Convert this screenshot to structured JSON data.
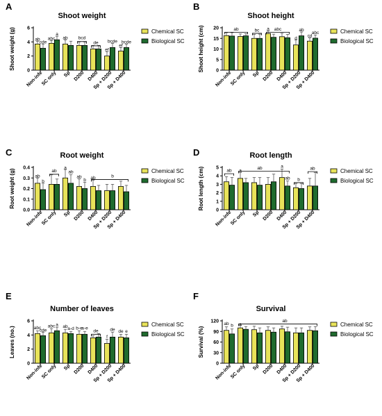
{
  "legend": {
    "chemical": "Chemical SC",
    "biological": "Biological SC",
    "chemical_color": "#e8e35a",
    "biological_color": "#1f6b2e"
  },
  "chart_data": [
    {
      "panel": "A",
      "type": "bar",
      "title": "Shoot weight",
      "ylabel": "Shoot weight (g)",
      "ylim": [
        0,
        6
      ],
      "yticks": [
        0,
        2,
        4,
        6
      ],
      "categories": [
        "Non-infe",
        "SC only",
        "Sp",
        "D200",
        "D400",
        "Sp + D200",
        "Sp + D400"
      ],
      "series": [
        {
          "name": "Chemical SC",
          "values": [
            3.7,
            3.8,
            3.7,
            3.5,
            3.0,
            2.0,
            2.7
          ],
          "errors": [
            0.4,
            0.4,
            0.6,
            0.5,
            0.5,
            0.6,
            0.5
          ]
        },
        {
          "name": "Biological SC",
          "values": [
            3.1,
            4.3,
            3.5,
            3.5,
            3.0,
            3.2,
            3.2
          ],
          "errors": [
            0.6,
            0.5,
            0.6,
            0.5,
            0.5,
            0.6,
            0.5
          ]
        }
      ],
      "labels": [
        {
          "text": "ab",
          "cat": 0,
          "pos": "c",
          "y": 4.2
        },
        {
          "text": "cde",
          "cat": 0,
          "pos": "b",
          "y": 3.8
        },
        {
          "text": "abc",
          "cat": 1,
          "pos": "c",
          "y": 4.3
        },
        {
          "text": "a",
          "cat": 1,
          "pos": "b",
          "y": 4.9
        },
        {
          "text": "ab",
          "cat": 2,
          "pos": "c",
          "y": 4.4
        },
        {
          "text": "bcd",
          "cat": 3,
          "pos": "m",
          "y": 4.4
        },
        {
          "text": "de",
          "cat": 4,
          "pos": "m",
          "y": 3.7
        },
        {
          "text": "ef",
          "cat": 5,
          "pos": "c",
          "y": 2.7
        },
        {
          "text": "bcde",
          "cat": 5,
          "pos": "b",
          "y": 3.9
        },
        {
          "text": "ef",
          "cat": 6,
          "pos": "c",
          "y": 3.3
        },
        {
          "text": "bcde",
          "cat": 6,
          "pos": "b",
          "y": 3.8
        }
      ],
      "brackets": [
        {
          "from": 3,
          "to": 3,
          "y": 4.05
        },
        {
          "from": 4,
          "to": 4,
          "y": 3.45
        }
      ]
    },
    {
      "panel": "B",
      "type": "bar",
      "title": "Shoot height",
      "ylabel": "Shoot height (cm)",
      "ylim": [
        0,
        20
      ],
      "yticks": [
        0,
        5,
        10,
        15,
        20
      ],
      "categories": [
        "Non-infe",
        "SC only",
        "Sp",
        "D200",
        "D400",
        "Sp + D200",
        "Sp + D400"
      ],
      "series": [
        {
          "name": "Chemical SC",
          "values": [
            16.3,
            15.9,
            15.0,
            17.3,
            15.8,
            11.9,
            13.7
          ],
          "errors": [
            1.4,
            1.2,
            1.9,
            1.3,
            1.6,
            2.4,
            1.6
          ]
        },
        {
          "name": "Biological SC",
          "values": [
            16.1,
            16.2,
            15.0,
            15.5,
            15.3,
            16.2,
            15.1
          ],
          "errors": [
            1.6,
            1.0,
            2.0,
            1.5,
            1.6,
            1.8,
            1.5
          ]
        }
      ],
      "labels": [
        {
          "text": "ab",
          "cat": 1,
          "pos": "l",
          "y": 18.7
        },
        {
          "text": "bc",
          "cat": 2,
          "pos": "m",
          "y": 18.2
        },
        {
          "text": "a",
          "cat": 3,
          "pos": "c",
          "y": 18.8
        },
        {
          "text": "abc",
          "cat": 4,
          "pos": "l",
          "y": 18.7
        },
        {
          "text": "d",
          "cat": 5,
          "pos": "c",
          "y": 14.5
        },
        {
          "text": "ab",
          "cat": 5,
          "pos": "b",
          "y": 18.3
        },
        {
          "text": "cd",
          "cat": 6,
          "pos": "c",
          "y": 15.6
        },
        {
          "text": "abc",
          "cat": 6,
          "pos": "b",
          "y": 17.0
        }
      ],
      "brackets": [
        {
          "from": 0,
          "to": 1,
          "y": 17.9
        },
        {
          "from": 2,
          "to": 2,
          "y": 17.4
        },
        {
          "from": 3,
          "to": 4,
          "y": 17.9
        }
      ]
    },
    {
      "panel": "C",
      "type": "bar",
      "title": "Root weight",
      "ylabel": "Root weight (g)",
      "ylim": [
        0,
        0.4
      ],
      "yticks": [
        0.0,
        0.1,
        0.2,
        0.3,
        0.4
      ],
      "categories": [
        "Non-infe",
        "SC only",
        "Sp",
        "D200",
        "D400",
        "Sp + D200",
        "Sp + D400"
      ],
      "series": [
        {
          "name": "Chemical SC",
          "values": [
            0.25,
            0.24,
            0.3,
            0.22,
            0.22,
            0.18,
            0.22
          ],
          "errors": [
            0.05,
            0.09,
            0.08,
            0.07,
            0.06,
            0.06,
            0.05
          ]
        },
        {
          "name": "Biological SC",
          "values": [
            0.19,
            0.24,
            0.25,
            0.2,
            0.18,
            0.18,
            0.17
          ],
          "errors": [
            0.06,
            0.05,
            0.08,
            0.06,
            0.05,
            0.06,
            0.06
          ]
        }
      ],
      "labels": [
        {
          "text": "ab",
          "cat": 0,
          "pos": "c",
          "y": 0.305
        },
        {
          "text": "b",
          "cat": 0,
          "pos": "b",
          "y": 0.255
        },
        {
          "text": "ab",
          "cat": 1,
          "pos": "m",
          "y": 0.355
        },
        {
          "text": "a",
          "cat": 2,
          "pos": "c",
          "y": 0.385
        },
        {
          "text": "ab",
          "cat": 2,
          "pos": "b",
          "y": 0.345
        },
        {
          "text": "ab",
          "cat": 3,
          "pos": "c",
          "y": 0.3
        },
        {
          "text": "b",
          "cat": 3,
          "pos": "b",
          "y": 0.27
        },
        {
          "text": "ab",
          "cat": 4,
          "pos": "c",
          "y": 0.29
        },
        {
          "text": "b",
          "cat": 5,
          "pos": "b",
          "y": 0.305
        }
      ],
      "brackets": [
        {
          "from": 1,
          "to": 1,
          "y": 0.335
        },
        {
          "from": 4,
          "to": 6,
          "y": 0.285
        }
      ]
    },
    {
      "panel": "D",
      "type": "bar",
      "title": "Root length",
      "ylabel": "Root length (cm)",
      "ylim": [
        0,
        5
      ],
      "yticks": [
        0,
        1,
        2,
        3,
        4,
        5
      ],
      "categories": [
        "Non-infe",
        "SC only",
        "Sp",
        "D200",
        "D400",
        "Sp + D200",
        "Sp + D400"
      ],
      "series": [
        {
          "name": "Chemical SC",
          "values": [
            3.3,
            3.7,
            3.2,
            3.0,
            3.8,
            2.6,
            2.8
          ],
          "errors": [
            0.6,
            0.7,
            0.6,
            0.8,
            1.0,
            0.5,
            0.9
          ]
        },
        {
          "name": "Biological SC",
          "values": [
            2.9,
            3.2,
            2.9,
            3.3,
            2.8,
            2.5,
            2.8
          ],
          "errors": [
            0.9,
            0.5,
            0.9,
            0.9,
            0.6,
            0.6,
            1.6
          ]
        }
      ],
      "labels": [
        {
          "text": "ab",
          "cat": 0,
          "pos": "m",
          "y": 4.45
        },
        {
          "text": "a",
          "cat": 1,
          "pos": "c",
          "y": 4.45
        },
        {
          "text": "ab",
          "cat": 2,
          "pos": "b",
          "y": 4.75
        },
        {
          "text": "a",
          "cat": 4,
          "pos": "c",
          "y": 4.95
        },
        {
          "text": "ab",
          "cat": 4,
          "pos": "b",
          "y": 3.55
        },
        {
          "text": "b",
          "cat": 5,
          "pos": "m",
          "y": 3.4
        },
        {
          "text": "ab",
          "cat": 6,
          "pos": "m",
          "y": 4.7
        }
      ],
      "brackets": [
        {
          "from": 0,
          "to": 0,
          "y": 4.25
        },
        {
          "from": 1,
          "to": 4,
          "y": 4.55
        },
        {
          "from": 5,
          "to": 5,
          "y": 3.2
        },
        {
          "from": 6,
          "to": 6,
          "y": 4.5
        }
      ]
    },
    {
      "panel": "E",
      "type": "bar",
      "title": "Number of leaves",
      "ylabel": "Leaves (no.)",
      "ylim": [
        0,
        6
      ],
      "yticks": [
        0,
        2,
        4,
        6
      ],
      "categories": [
        "Non-infe",
        "SC only",
        "Sp",
        "D200",
        "D400",
        "Sp + D200",
        "Sp + D400"
      ],
      "series": [
        {
          "name": "Chemical SC",
          "values": [
            4.2,
            4.3,
            4.3,
            4.1,
            3.6,
            2.8,
            3.7
          ],
          "errors": [
            0.4,
            0.6,
            0.5,
            0.5,
            0.3,
            0.6,
            0.4
          ]
        },
        {
          "name": "Biological SC",
          "values": [
            3.9,
            4.6,
            4.2,
            4.1,
            3.7,
            3.7,
            3.6
          ],
          "errors": [
            0.5,
            0.5,
            0.3,
            0.4,
            0.5,
            0.7,
            0.5
          ]
        }
      ],
      "labels": [
        {
          "text": "abc",
          "cat": 0,
          "pos": "c",
          "y": 4.8
        },
        {
          "text": "cde",
          "cat": 0,
          "pos": "b",
          "y": 4.5
        },
        {
          "text": "abc",
          "cat": 1,
          "pos": "c",
          "y": 5.05
        },
        {
          "text": "a",
          "cat": 1,
          "pos": "b",
          "y": 5.25
        },
        {
          "text": "ab",
          "cat": 2,
          "pos": "c",
          "y": 5.0
        },
        {
          "text": "a-d",
          "cat": 2,
          "pos": "b",
          "y": 4.7
        },
        {
          "text": "b-e",
          "cat": 3,
          "pos": "c",
          "y": 4.75
        },
        {
          "text": "a-e",
          "cat": 3,
          "pos": "b",
          "y": 4.75
        },
        {
          "text": "de",
          "cat": 4,
          "pos": "m",
          "y": 4.4
        },
        {
          "text": "f",
          "cat": 5,
          "pos": "c",
          "y": 3.55
        },
        {
          "text": "de",
          "cat": 5,
          "pos": "b",
          "y": 4.55
        },
        {
          "text": "de",
          "cat": 6,
          "pos": "c",
          "y": 4.35
        },
        {
          "text": "e",
          "cat": 6,
          "pos": "b",
          "y": 4.35
        }
      ],
      "brackets": [
        {
          "from": 4,
          "to": 4,
          "y": 4.1
        }
      ]
    },
    {
      "panel": "F",
      "type": "bar",
      "title": "Survival",
      "ylabel": "Survival (%)",
      "ylim": [
        0,
        120
      ],
      "yticks": [
        0,
        30,
        60,
        90,
        120
      ],
      "categories": [
        "Non-infe",
        "SC only",
        "Sp",
        "D200",
        "D400",
        "Sp + D200",
        "Sp + D400"
      ],
      "series": [
        {
          "name": "Chemical SC",
          "values": [
            93,
            100,
            95,
            93,
            97,
            86,
            93
          ],
          "errors": [
            10,
            7,
            10,
            10,
            8,
            14,
            10
          ]
        },
        {
          "name": "Biological SC",
          "values": [
            83,
            96,
            86,
            88,
            89,
            86,
            92
          ],
          "errors": [
            14,
            8,
            14,
            12,
            13,
            14,
            12
          ]
        }
      ],
      "labels": [
        {
          "text": "ab",
          "cat": 0,
          "pos": "c",
          "y": 108
        },
        {
          "text": "b",
          "cat": 0,
          "pos": "b",
          "y": 103
        },
        {
          "text": "a",
          "cat": 1,
          "pos": "c",
          "y": 106
        },
        {
          "text": "ab",
          "cat": 4,
          "pos": "m",
          "y": 116
        }
      ],
      "brackets": [
        {
          "from": 1,
          "to": 6,
          "y": 111
        }
      ]
    }
  ]
}
